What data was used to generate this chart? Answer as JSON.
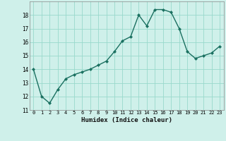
{
  "x": [
    0,
    1,
    2,
    3,
    4,
    5,
    6,
    7,
    8,
    9,
    10,
    11,
    12,
    13,
    14,
    15,
    16,
    17,
    18,
    19,
    20,
    21,
    22,
    23
  ],
  "y": [
    14.0,
    12.0,
    11.5,
    12.5,
    13.3,
    13.6,
    13.8,
    14.0,
    14.3,
    14.6,
    15.3,
    16.1,
    16.4,
    18.0,
    17.2,
    18.4,
    18.4,
    18.2,
    17.0,
    15.3,
    14.8,
    15.0,
    15.2,
    15.7
  ],
  "xlabel": "Humidex (Indice chaleur)",
  "ylim": [
    11,
    19
  ],
  "xlim": [
    -0.5,
    23.5
  ],
  "yticks": [
    11,
    12,
    13,
    14,
    15,
    16,
    17,
    18
  ],
  "xticks": [
    0,
    1,
    2,
    3,
    4,
    5,
    6,
    7,
    8,
    9,
    10,
    11,
    12,
    13,
    14,
    15,
    16,
    17,
    18,
    19,
    20,
    21,
    22,
    23
  ],
  "line_color": "#1a7060",
  "marker_color": "#1a7060",
  "bg_color": "#cff0ea",
  "grid_color": "#99d9cc"
}
